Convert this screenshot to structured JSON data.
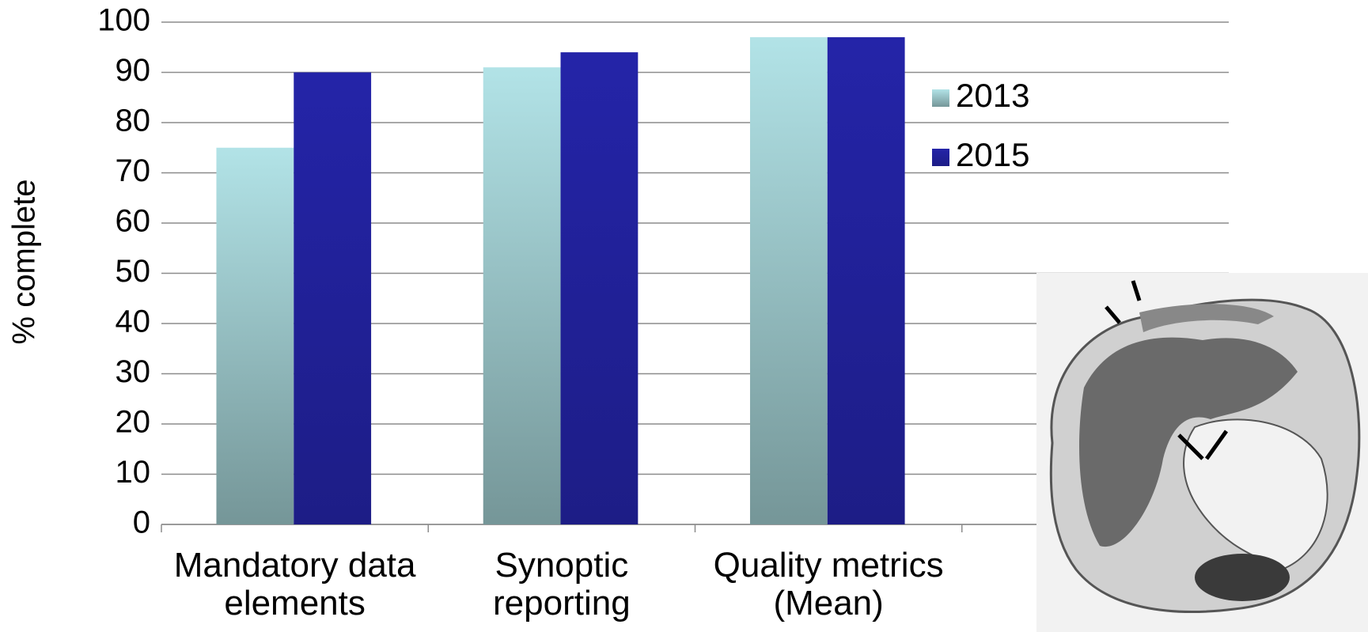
{
  "chart_data": {
    "type": "bar",
    "y_label": "% complete",
    "categories": [
      "Mandatory data elements",
      "Synoptic reporting",
      "Quality metrics (Mean)",
      null
    ],
    "series": [
      {
        "name": "2013",
        "color": "#b2e3e7",
        "values": [
          75,
          91,
          97,
          null
        ]
      },
      {
        "name": "2015",
        "color": "#2424a8",
        "values": [
          90,
          94,
          97,
          null
        ]
      }
    ],
    "ylim": [
      0,
      100
    ],
    "yticks": [
      0,
      10,
      20,
      30,
      40,
      50,
      60,
      70,
      80,
      90,
      100
    ],
    "grid": true,
    "legend": "right"
  }
}
